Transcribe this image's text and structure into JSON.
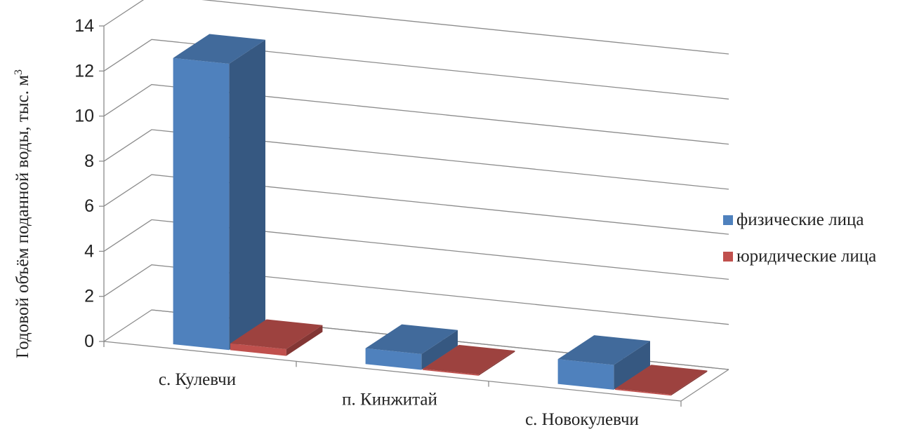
{
  "chart_data": {
    "type": "bar",
    "categories": [
      "с. Кулевчи",
      "п. Кинжитай",
      "с. Новокулевчи"
    ],
    "series": [
      {
        "name": "физические лица",
        "values": [
          12.7,
          0.7,
          1.1
        ],
        "color": "#4F81BD"
      },
      {
        "name": "юридические лица",
        "values": [
          0.3,
          0.05,
          0.05
        ],
        "color": "#C0504D"
      }
    ],
    "ylabel": "Годовой объём поданной воды, тыс. м",
    "ylabel_sup": "3",
    "ylim": [
      0,
      14
    ],
    "yticks": [
      "0",
      "2",
      "4",
      "6",
      "8",
      "10",
      "12",
      "14"
    ],
    "grid": true,
    "legend_position": "right"
  }
}
